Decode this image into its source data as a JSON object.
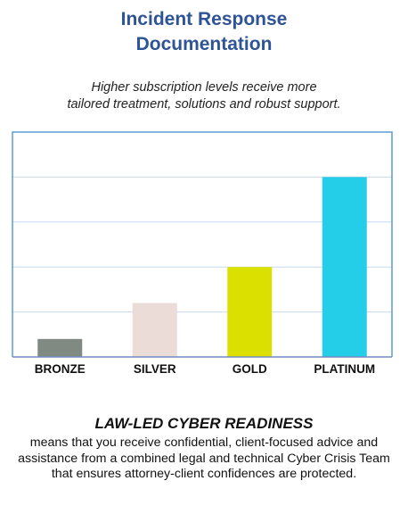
{
  "header": {
    "title_line1": "Incident Response",
    "title_line2": "Documentation",
    "subtitle_line1": "Higher subscription levels receive more",
    "subtitle_line2": "tailored treatment, solutions and robust support."
  },
  "chart_data": {
    "type": "bar",
    "categories": [
      "BRONZE",
      "SILVER",
      "GOLD",
      "PLATINUM"
    ],
    "values": [
      0.4,
      1.2,
      2.0,
      4.0
    ],
    "colors": [
      "#808a83",
      "#ecdcd8",
      "#dbe000",
      "#24cde8"
    ],
    "ylim": [
      0,
      5
    ],
    "grid": true,
    "axis_color": "#5b9bd5",
    "grid_color": "#c9d8ee"
  },
  "footer": {
    "heading": "LAW-LED CYBER READINESS",
    "body": "means that you receive confidential, client-focused advice and assistance from a combined legal and technical Cyber Crisis Team that ensures attorney-client confidences are protected."
  }
}
